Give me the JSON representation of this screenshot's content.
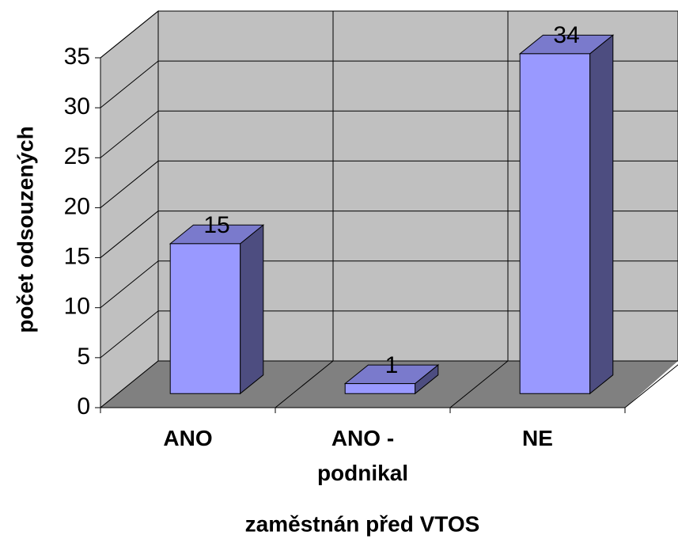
{
  "chart_data": {
    "type": "bar3d",
    "xlabel": "zaměstnán před VTOS",
    "ylabel": "počet odsouzených",
    "categories": [
      "ANO",
      "ANO - podnikal",
      "NE"
    ],
    "values": [
      15,
      1,
      34
    ],
    "color": "#9999ff",
    "ylim": [
      0,
      35
    ],
    "yticks": [
      0,
      5,
      10,
      15,
      20,
      25,
      30,
      35
    ],
    "grid": true
  }
}
